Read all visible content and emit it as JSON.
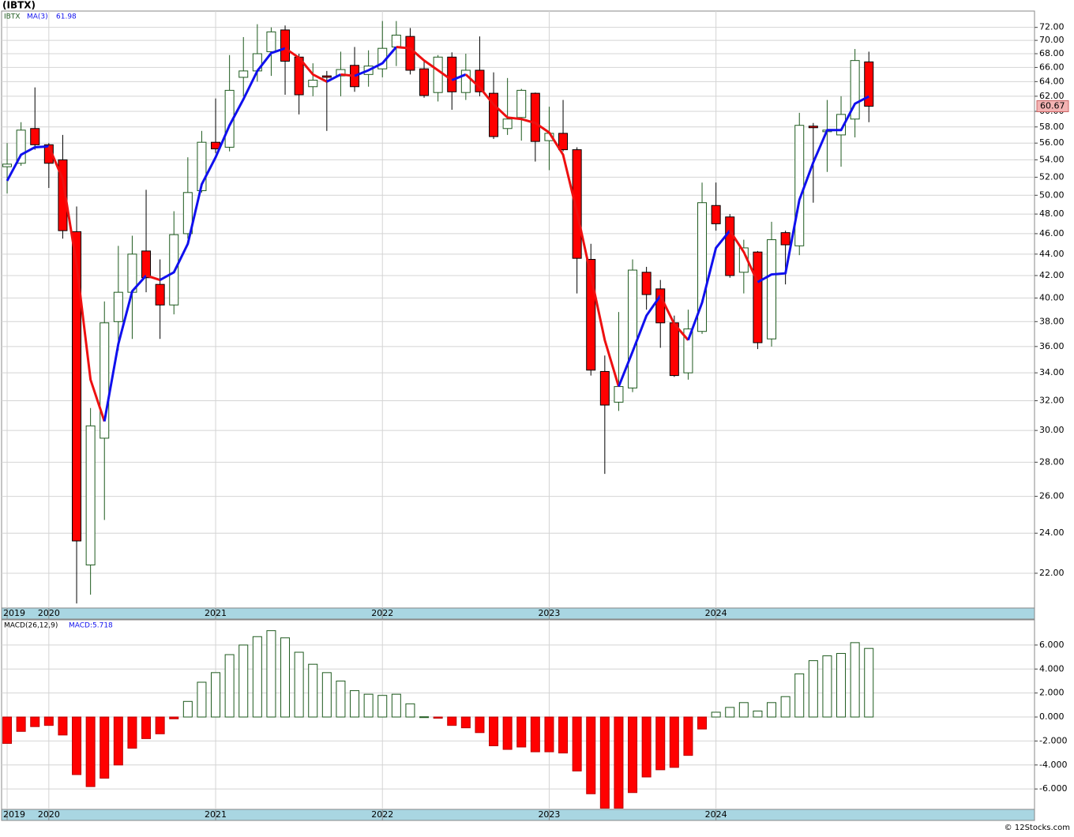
{
  "chart_data": [
    {
      "type": "candlestick",
      "title": "(IBTX)",
      "symbol": "IBTX",
      "ma_name": "MA(3)",
      "ma_value_label": "61.98",
      "log_scale": true,
      "grid": true,
      "up_color": "#1e5a1e",
      "down_color": "#ff0000",
      "ma_up_color": "#1010ee",
      "ma_down_color": "#ee1010",
      "ylim": [
        20.4,
        74.6
      ],
      "yticks": [
        {
          "value": 72,
          "label": "72.00"
        },
        {
          "value": 70,
          "label": "70.00"
        },
        {
          "value": 68,
          "label": "68.00"
        },
        {
          "value": 66,
          "label": "66.00"
        },
        {
          "value": 64,
          "label": "64.00"
        },
        {
          "value": 62,
          "label": "62.00"
        },
        {
          "value": 60,
          "label": "60.00"
        },
        {
          "value": 58,
          "label": "58.00"
        },
        {
          "value": 56,
          "label": "56.00"
        },
        {
          "value": 54,
          "label": "54.00"
        },
        {
          "value": 52,
          "label": "52.00"
        },
        {
          "value": 50,
          "label": "50.00"
        },
        {
          "value": 48,
          "label": "48.00"
        },
        {
          "value": 46,
          "label": "46.00"
        },
        {
          "value": 44,
          "label": "44.00"
        },
        {
          "value": 42,
          "label": "42.00"
        },
        {
          "value": 40,
          "label": "40.00"
        },
        {
          "value": 38,
          "label": "38.00"
        },
        {
          "value": 36,
          "label": "36.00"
        },
        {
          "value": 34,
          "label": "34.00"
        },
        {
          "value": 32,
          "label": "32.00"
        },
        {
          "value": 30,
          "label": "30.00"
        },
        {
          "value": 28,
          "label": "28.00"
        },
        {
          "value": 26,
          "label": "26.00"
        },
        {
          "value": 24,
          "label": "24.00"
        },
        {
          "value": 22,
          "label": "22.00"
        }
      ],
      "x_labels": [
        {
          "value": 0,
          "label": "2019"
        },
        {
          "value": 3,
          "label": "2020"
        },
        {
          "value": 15,
          "label": "2021"
        },
        {
          "value": 27,
          "label": "2022"
        },
        {
          "value": 39,
          "label": "2023"
        },
        {
          "value": 51,
          "label": "2024"
        }
      ],
      "open": [
        53.2,
        53.6,
        57.8,
        55.8,
        54,
        46.2,
        22.4,
        29.5,
        38,
        40.5,
        44.3,
        41.2,
        39.4,
        46,
        50.5,
        56.1,
        55.5,
        64.6,
        65.5,
        68.3,
        71.6,
        67.5,
        63.3,
        64.8,
        64.8,
        66.3,
        65,
        65.8,
        69,
        70.6,
        65.8,
        62.5,
        67.5,
        62.5,
        65.6,
        62.4,
        57.8,
        59.2,
        62.4,
        56.3,
        57.2,
        55.2,
        43.5,
        34.1,
        31.9,
        32.9,
        42.3,
        40.8,
        37.9,
        34,
        37.2,
        48.9,
        47.7,
        42.3,
        44.2,
        36.6,
        46.1,
        44.8,
        58.1,
        57.4,
        57,
        59,
        66.8
      ],
      "high": [
        56,
        58.6,
        63.2,
        56,
        57,
        48.8,
        31.5,
        39.7,
        44.8,
        45.8,
        50.6,
        43.5,
        48.3,
        54.3,
        57.5,
        61.7,
        67.8,
        70.5,
        72.5,
        72,
        72.3,
        68,
        66.6,
        65.5,
        68.3,
        69,
        68.5,
        73,
        73,
        71.9,
        67,
        67.8,
        68.2,
        68,
        70.6,
        65.3,
        64.5,
        63,
        62.5,
        60.6,
        61.5,
        55.5,
        45,
        35.3,
        38.8,
        43.5,
        42.8,
        41.6,
        38.5,
        39,
        51.4,
        51.4,
        48,
        45.4,
        44.3,
        47.2,
        46.3,
        59.8,
        58.5,
        61.5,
        62,
        68.7,
        68.3
      ],
      "low": [
        50.2,
        53.3,
        55.2,
        50.8,
        45.5,
        20.6,
        21,
        24.7,
        35.7,
        36.6,
        40.5,
        36.6,
        38.6,
        45.5,
        50.3,
        54.8,
        55,
        62,
        64,
        64.8,
        62.2,
        59.6,
        62,
        57.5,
        62,
        62.6,
        63.3,
        64.6,
        66.2,
        65,
        61.8,
        61.3,
        60.2,
        61.5,
        62,
        56.5,
        57,
        56.3,
        53.8,
        52.8,
        55,
        40.4,
        33.8,
        27.3,
        31.3,
        32.6,
        39,
        35.9,
        33.7,
        33.5,
        37,
        46.3,
        41.8,
        40.4,
        35.8,
        36,
        41.2,
        43.9,
        49.2,
        52.6,
        53.2,
        56.7,
        58.6
      ],
      "close": [
        53.5,
        57.6,
        55.8,
        53.6,
        46.3,
        23.6,
        30.3,
        37.9,
        40.5,
        44,
        41.8,
        39.4,
        45.9,
        50.3,
        56.1,
        55.3,
        62.8,
        65.5,
        68,
        71.3,
        66.9,
        62.2,
        64.2,
        64.6,
        65.7,
        63.3,
        66.2,
        68.8,
        70.8,
        65.6,
        62.1,
        67.5,
        62.6,
        65.6,
        62.6,
        56.8,
        59,
        62.8,
        56.2,
        57.2,
        55.2,
        43.6,
        34.2,
        31.7,
        33,
        42.5,
        40.3,
        37.9,
        33.8,
        37.4,
        49.2,
        47,
        42,
        44.6,
        36.3,
        45.4,
        44.9,
        58.2,
        57.9,
        57.6,
        59.6,
        67,
        60.67
      ],
      "ma": [
        51.6,
        54.6,
        55.5,
        55.6,
        51.8,
        43,
        33.5,
        30.6,
        36.2,
        40.6,
        42,
        41.6,
        42.3,
        45,
        51.2,
        54.3,
        58.2,
        61.6,
        65.5,
        68.1,
        68.8,
        67.4,
        65,
        64,
        65,
        64.8,
        65.6,
        66.6,
        69,
        68.8,
        67,
        65.6,
        64.2,
        65,
        63.2,
        60.9,
        59.2,
        59,
        58.5,
        57.3,
        54.6,
        48.2,
        42,
        36.5,
        33,
        35.6,
        38.5,
        40.2,
        37.8,
        36.5,
        39.6,
        44.6,
        46.3,
        44.2,
        41.4,
        42.1,
        42.2,
        49.5,
        53.7,
        57.6,
        57.6,
        61,
        61.98
      ],
      "price_tag": {
        "value": 60.67,
        "label": "60.67"
      }
    },
    {
      "type": "bar",
      "title": "MACD(26,12,9)",
      "value_label": "MACD:5.718",
      "grid": true,
      "up_color": "#1e5a1e",
      "down_color": "#ff0000",
      "ylim": [
        -7.7,
        8.1
      ],
      "yticks": [
        {
          "value": 6,
          "label": "6.000"
        },
        {
          "value": 4,
          "label": "4.000"
        },
        {
          "value": 2,
          "label": "2.000"
        },
        {
          "value": 0,
          "label": "0.000"
        },
        {
          "value": -2,
          "label": "-2.000"
        },
        {
          "value": -4,
          "label": "-4.000"
        },
        {
          "value": -6,
          "label": "-6.000"
        }
      ],
      "values": [
        -2.2,
        -1.2,
        -0.8,
        -0.7,
        -1.5,
        -4.8,
        -5.8,
        -5.1,
        -4,
        -2.6,
        -1.8,
        -1.4,
        -0.15,
        1.3,
        2.9,
        3.7,
        5.2,
        6,
        6.7,
        7.2,
        6.6,
        5.4,
        4.4,
        3.7,
        3,
        2.2,
        1.9,
        1.8,
        1.9,
        1.1,
        0.02,
        -0.1,
        -0.7,
        -0.9,
        -1.3,
        -2.4,
        -2.7,
        -2.5,
        -2.9,
        -2.9,
        -3,
        -4.5,
        -6.4,
        -7.6,
        -7.6,
        -6.3,
        -5,
        -4.4,
        -4.2,
        -3.2,
        -1,
        0.4,
        0.8,
        1.2,
        0.5,
        1.2,
        1.7,
        3.6,
        4.7,
        5.1,
        5.3,
        6.2,
        5.718
      ]
    }
  ],
  "footer": "© 12Stocks.com"
}
